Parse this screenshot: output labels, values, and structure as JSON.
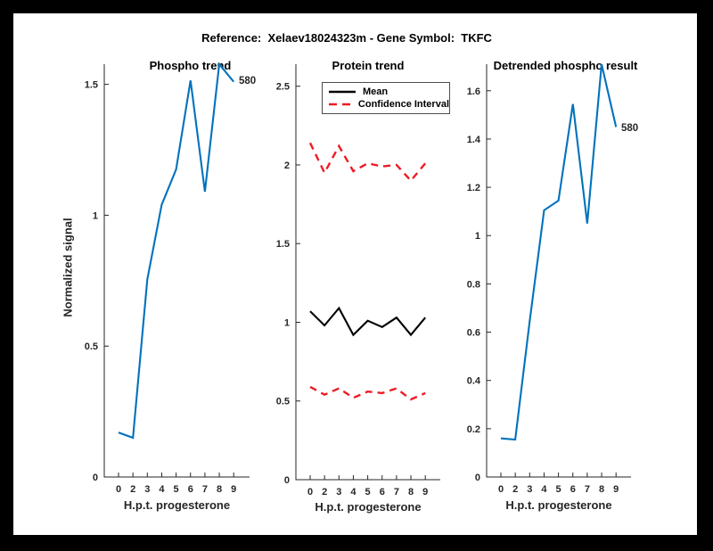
{
  "figure": {
    "title": "Reference:  Xelaev18024323m - Gene Symbol:  TKFC",
    "background": "#ffffff",
    "frame_color": "#000000",
    "accent_blue": "#0072BD",
    "accent_red": "#ED1C24"
  },
  "chart_data": [
    {
      "type": "line",
      "title": "Phospho trend",
      "xlabel": "H.p.t. progesterone",
      "ylabel": "Normalized signal",
      "x_tick_labels": [
        "0",
        "2",
        "3",
        "4",
        "5",
        "6",
        "7",
        "8",
        "9"
      ],
      "yticks": [
        0,
        0.5,
        1,
        1.5
      ],
      "ylim": [
        0,
        1.577
      ],
      "grid": false,
      "point_label": "580",
      "series": [
        {
          "name": "phospho",
          "color": "#0072BD",
          "style": "solid",
          "values": [
            0.17,
            0.15,
            0.755,
            1.04,
            1.175,
            1.515,
            1.09,
            1.577,
            1.51
          ]
        }
      ]
    },
    {
      "type": "line",
      "title": "Protein trend",
      "xlabel": "H.p.t. progesterone",
      "ylabel": "",
      "x_tick_labels": [
        "0",
        "2",
        "3",
        "4",
        "5",
        "6",
        "7",
        "8",
        "9"
      ],
      "yticks": [
        0,
        0.5,
        1,
        1.5,
        2,
        2.5
      ],
      "ylim": [
        0,
        2.64
      ],
      "grid": false,
      "legend": {
        "position": "top-left",
        "entries": [
          {
            "label": "Mean",
            "color": "#000000",
            "style": "solid"
          },
          {
            "label": "Confidence Interval",
            "color": "#ED1C24",
            "style": "dashed"
          }
        ]
      },
      "series": [
        {
          "name": "confidence-upper",
          "color": "#ED1C24",
          "style": "dashed",
          "values": [
            2.14,
            1.95,
            2.12,
            1.96,
            2.01,
            1.99,
            2.0,
            1.9,
            2.01
          ]
        },
        {
          "name": "confidence-lower",
          "color": "#ED1C24",
          "style": "dashed",
          "values": [
            0.59,
            0.54,
            0.58,
            0.52,
            0.56,
            0.55,
            0.58,
            0.51,
            0.55
          ]
        },
        {
          "name": "mean",
          "color": "#000000",
          "style": "solid",
          "values": [
            1.07,
            0.98,
            1.09,
            0.92,
            1.01,
            0.97,
            1.03,
            0.92,
            1.03
          ]
        }
      ]
    },
    {
      "type": "line",
      "title": "Detrended phospho result",
      "xlabel": "H.p.t. progesterone",
      "ylabel": "",
      "x_tick_labels": [
        "0",
        "2",
        "3",
        "4",
        "5",
        "6",
        "7",
        "8",
        "9"
      ],
      "yticks": [
        0,
        0.2,
        0.4,
        0.6,
        0.8,
        1,
        1.2,
        1.4,
        1.6
      ],
      "ylim": [
        0,
        1.71
      ],
      "grid": false,
      "point_label": "580",
      "series": [
        {
          "name": "detrended",
          "color": "#0072BD",
          "style": "solid",
          "values": [
            0.16,
            0.155,
            0.645,
            1.105,
            1.145,
            1.545,
            1.05,
            1.71,
            1.45
          ]
        }
      ]
    }
  ]
}
